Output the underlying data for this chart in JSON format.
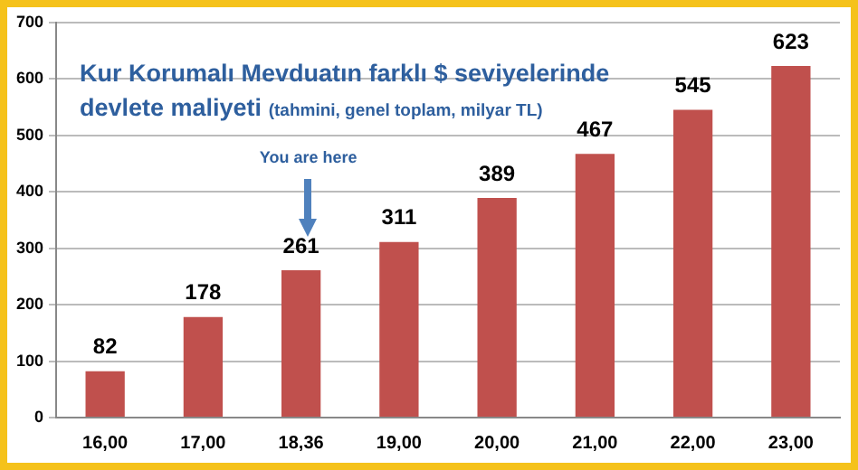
{
  "chart_data": {
    "type": "bar",
    "title": "Kur Korumalı Mevduatın farklı $ seviyelerinde devlete maliyeti",
    "subtitle": "(tahmini, genel toplam, milyar TL)",
    "categories": [
      "16,00",
      "17,00",
      "18,36",
      "19,00",
      "20,00",
      "21,00",
      "22,00",
      "23,00"
    ],
    "values": [
      82,
      178,
      261,
      311,
      389,
      467,
      545,
      623
    ],
    "color": "#c0504d",
    "ylim": [
      0,
      700
    ],
    "yticks": [
      0,
      100,
      200,
      300,
      400,
      500,
      600,
      700
    ],
    "grid": "y",
    "data_labels": true,
    "legend": false,
    "annotations": [
      "You are here"
    ]
  }
}
